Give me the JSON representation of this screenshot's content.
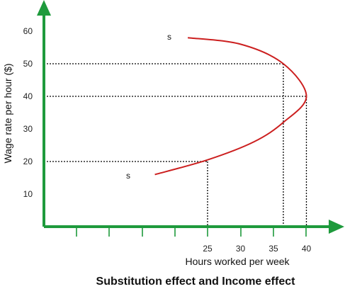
{
  "chart_data": {
    "type": "line",
    "title": "Substitution effect and Income effect",
    "xlabel": "Hours worked per week",
    "ylabel": "Wage rate per hour ($)",
    "x_tick_labels": [
      "25",
      "30",
      "35",
      "40"
    ],
    "y_ticks": [
      10,
      20,
      30,
      40,
      50,
      60
    ],
    "series": [
      {
        "name": "s",
        "color": "#cc1f1f",
        "points": [
          {
            "x": 17,
            "y": 16
          },
          {
            "x": 25,
            "y": 20.5
          },
          {
            "x": 32,
            "y": 26
          },
          {
            "x": 36.5,
            "y": 32
          },
          {
            "x": 40,
            "y": 40
          },
          {
            "x": 36.5,
            "y": 50
          },
          {
            "x": 30,
            "y": 56
          },
          {
            "x": 22,
            "y": 58
          }
        ]
      }
    ],
    "reference_lines": [
      {
        "x": 25,
        "y": 20
      },
      {
        "x": 36.5,
        "y": 50
      },
      {
        "x": 40,
        "y": 40
      }
    ],
    "colors": {
      "axis": "#1e9a3c",
      "curve": "#cc1f1f",
      "guides": "#000000"
    }
  }
}
